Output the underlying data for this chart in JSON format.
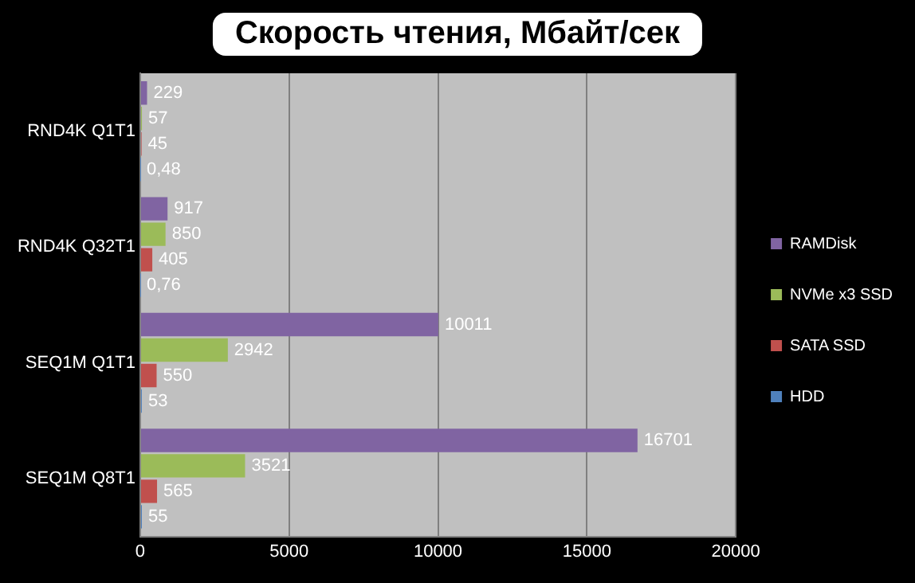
{
  "chart_data": {
    "type": "bar",
    "orientation": "horizontal",
    "title": "Скорость чтения, Мбайт/сек",
    "categories": [
      "RND4K Q1T1",
      "RND4K Q32T1",
      "SEQ1M Q1T1",
      "SEQ1M Q8T1"
    ],
    "series": [
      {
        "name": "RAMDisk",
        "color": "#8064a2",
        "values": [
          229,
          917,
          10011,
          16701
        ],
        "value_labels": [
          "229",
          "917",
          "10011",
          "16701"
        ]
      },
      {
        "name": "NVMe x3 SSD",
        "color": "#9bbb59",
        "values": [
          57,
          850,
          2942,
          3521
        ],
        "value_labels": [
          "57",
          "850",
          "2942",
          "3521"
        ]
      },
      {
        "name": "SATA SSD",
        "color": "#c0504d",
        "values": [
          45,
          405,
          550,
          565
        ],
        "value_labels": [
          "45",
          "405",
          "550",
          "565"
        ]
      },
      {
        "name": "HDD",
        "color": "#4f81bd",
        "values": [
          0.48,
          0.76,
          53,
          55
        ],
        "value_labels": [
          "0,48",
          "0,76",
          "53",
          "55"
        ]
      }
    ],
    "xlim": [
      0,
      20000
    ],
    "xticks": [
      0,
      5000,
      10000,
      15000,
      20000
    ],
    "grid": "x",
    "legend": "right"
  }
}
